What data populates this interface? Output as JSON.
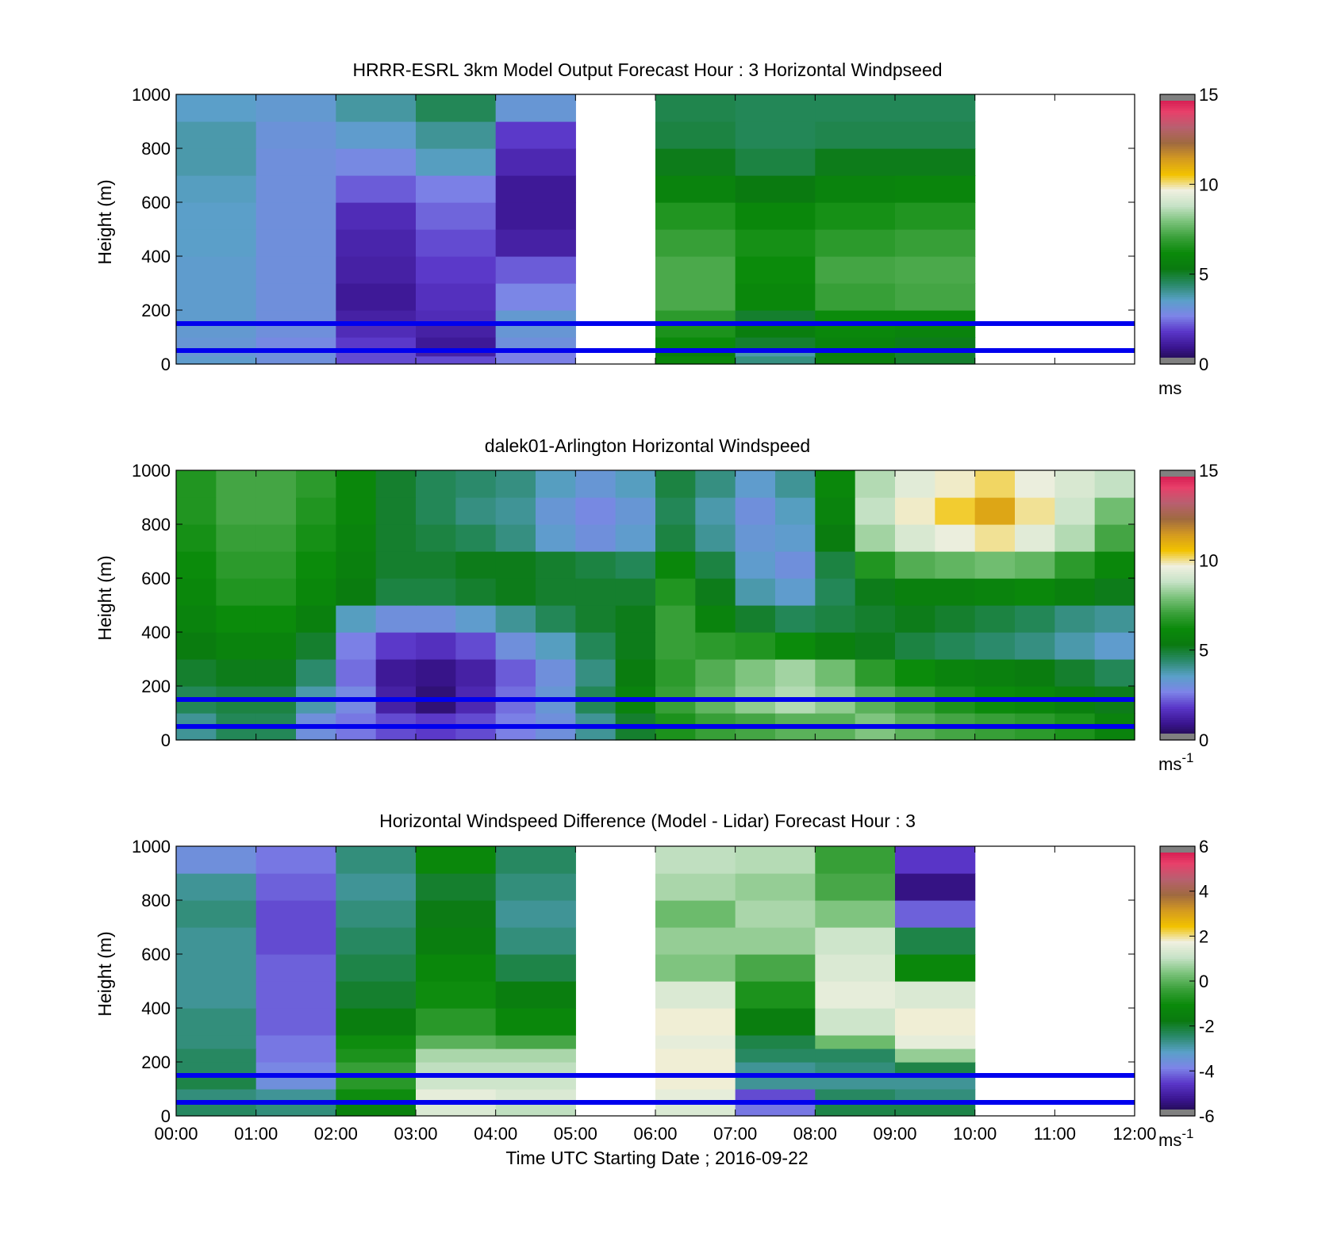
{
  "colormaps": {
    "speed": [
      "#1c0a40",
      "#3a1590",
      "#5a36c8",
      "#7d84e8",
      "#5aa0c8",
      "#2a8a6a",
      "#0a7a10",
      "#0a8a0a",
      "#3aa03a",
      "#7ac27a",
      "#c6e2c6",
      "#f0f0e0",
      "#f2c200",
      "#d49a20",
      "#a06a40",
      "#b86070",
      "#e8406a",
      "#d0104a"
    ],
    "diff": [
      "#1c0a40",
      "#3a1590",
      "#5a36c8",
      "#7d84e8",
      "#5aa0c8",
      "#2a8a6a",
      "#0a7a10",
      "#0a8a0a",
      "#3aa03a",
      "#7ac27a",
      "#c6e2c6",
      "#f0f0e0",
      "#f2c200",
      "#d49a20",
      "#a06a40",
      "#b86070",
      "#e8406a",
      "#d0104a"
    ]
  },
  "reference_lines": {
    "color": "#0000ee",
    "heights_m": [
      150,
      50
    ]
  },
  "xaxis": {
    "ticks": [
      "00:00",
      "01:00",
      "02:00",
      "03:00",
      "04:00",
      "05:00",
      "06:00",
      "07:00",
      "08:00",
      "09:00",
      "10:00",
      "11:00",
      "12:00"
    ],
    "label": "Time UTC  Starting Date ; 2016-09-22"
  },
  "chart_data": [
    {
      "type": "heatmap",
      "title": "HRRR-ESRL 3km Model Output   Forecast Hour : 3 Horizontal Windpseed",
      "ylabel": "Height (m)",
      "yticks": [
        "0",
        "200",
        "400",
        "600",
        "800",
        "1000"
      ],
      "ylim": [
        0,
        1000
      ],
      "xlim_hours": [
        0,
        12
      ],
      "colorbar": {
        "ticks": [
          "0",
          "5",
          "10",
          "15"
        ],
        "range": [
          0,
          15
        ],
        "unit": "ms",
        "unit_sup": "",
        "cmap": "speed"
      },
      "x_hours": [
        0,
        1,
        2,
        3,
        4,
        5,
        6,
        7,
        8,
        9
      ],
      "y_edges_m": [
        0,
        30,
        50,
        100,
        150,
        200,
        300,
        400,
        500,
        600,
        700,
        800,
        900,
        1000
      ],
      "values": [
        [
          3.4,
          3.0,
          2.0,
          2.0,
          2.6,
          null,
          6.0,
          4.2,
          5.6,
          5.0
        ],
        [
          3.2,
          3.0,
          2.0,
          1.2,
          2.6,
          null,
          5.5,
          3.8,
          5.5,
          5.0
        ],
        [
          3.2,
          2.8,
          1.8,
          1.0,
          3.0,
          null,
          6.2,
          5.0,
          5.8,
          5.2
        ],
        [
          3.3,
          3.0,
          1.5,
          1.2,
          3.2,
          null,
          6.5,
          5.5,
          6.0,
          5.8
        ],
        [
          3.4,
          3.0,
          1.2,
          1.5,
          3.3,
          null,
          6.8,
          5.0,
          6.2,
          6.2
        ],
        [
          3.4,
          3.0,
          1.0,
          1.6,
          2.7,
          null,
          7.3,
          6.0,
          7.0,
          7.2
        ],
        [
          3.4,
          3.0,
          1.2,
          1.8,
          2.2,
          null,
          7.3,
          6.2,
          7.2,
          7.3
        ],
        [
          3.5,
          3.0,
          1.3,
          2.0,
          1.2,
          null,
          7.0,
          6.4,
          6.8,
          7.0
        ],
        [
          3.5,
          3.0,
          1.5,
          2.3,
          1.0,
          null,
          6.6,
          6.0,
          6.4,
          6.6
        ],
        [
          3.6,
          3.0,
          2.2,
          2.6,
          1.0,
          null,
          5.8,
          5.3,
          5.8,
          5.9
        ],
        [
          3.8,
          3.0,
          2.8,
          3.6,
          1.4,
          null,
          5.2,
          4.8,
          5.2,
          5.2
        ],
        [
          3.8,
          3.1,
          3.4,
          4.0,
          1.8,
          null,
          4.8,
          4.6,
          4.7,
          4.7
        ],
        [
          3.5,
          3.3,
          3.9,
          4.6,
          3.2,
          null,
          4.7,
          4.6,
          4.6,
          4.6
        ]
      ]
    },
    {
      "type": "heatmap",
      "title": "dalek01-Arlington  Horizontal Windspeed",
      "ylabel": "Height (m)",
      "yticks": [
        "0",
        "200",
        "400",
        "600",
        "800",
        "1000"
      ],
      "ylim": [
        0,
        1000
      ],
      "xlim_hours": [
        0,
        12
      ],
      "colorbar": {
        "ticks": [
          "0",
          "5",
          "10",
          "15"
        ],
        "range": [
          0,
          15
        ],
        "unit": "ms",
        "unit_sup": "-1",
        "cmap": "speed"
      },
      "x_hours": [
        0.0,
        0.5,
        1.0,
        1.5,
        2.0,
        2.5,
        3.0,
        3.5,
        4.0,
        4.5,
        5.0,
        5.5,
        6.0,
        6.5,
        7.0,
        7.5,
        8.0,
        8.5,
        9.0,
        9.5,
        10.0,
        10.5,
        11.0,
        11.5
      ],
      "y_edges_m": [
        0,
        100,
        200,
        300,
        400,
        500,
        600,
        700,
        800,
        900,
        1000
      ],
      "values": [
        [
          4.0,
          4.6,
          4.6,
          3.0,
          2.5,
          2.0,
          1.8,
          2.0,
          2.6,
          3.0,
          4.0,
          5.0,
          6.5,
          7.0,
          7.2,
          7.5,
          7.5,
          8.0,
          7.5,
          7.2,
          7.0,
          6.8,
          6.5,
          5.8
        ],
        [
          4.6,
          4.8,
          4.8,
          3.8,
          2.8,
          1.2,
          0.6,
          1.4,
          2.4,
          3.2,
          4.6,
          5.8,
          7.0,
          7.6,
          8.2,
          8.6,
          8.2,
          7.5,
          7.0,
          6.5,
          6.2,
          6.0,
          5.6,
          5.2
        ],
        [
          5.0,
          5.2,
          5.2,
          4.4,
          2.4,
          1.0,
          0.8,
          1.2,
          2.2,
          3.0,
          4.2,
          5.4,
          6.8,
          7.4,
          8.0,
          8.4,
          7.8,
          6.8,
          6.2,
          5.8,
          5.6,
          5.4,
          5.0,
          4.6
        ],
        [
          5.4,
          5.8,
          5.8,
          5.0,
          2.6,
          1.8,
          1.6,
          2.0,
          3.0,
          3.6,
          4.6,
          5.2,
          7.0,
          6.8,
          6.6,
          6.2,
          5.6,
          5.2,
          4.8,
          4.6,
          4.4,
          4.2,
          3.8,
          3.4
        ],
        [
          5.8,
          6.2,
          6.2,
          5.6,
          3.6,
          3.0,
          3.0,
          3.4,
          4.0,
          4.6,
          5.0,
          5.2,
          7.0,
          5.8,
          5.0,
          4.6,
          4.8,
          5.0,
          5.2,
          5.0,
          4.8,
          4.6,
          4.2,
          4.0
        ],
        [
          6.0,
          6.6,
          6.6,
          6.0,
          5.4,
          4.8,
          4.8,
          5.0,
          5.2,
          5.0,
          5.0,
          5.0,
          6.6,
          5.2,
          3.8,
          3.4,
          4.6,
          5.2,
          5.6,
          5.6,
          5.8,
          6.0,
          5.6,
          5.2
        ],
        [
          6.2,
          6.8,
          6.8,
          6.2,
          5.6,
          5.0,
          5.0,
          5.2,
          5.2,
          5.0,
          4.8,
          4.6,
          6.0,
          4.8,
          3.4,
          3.0,
          4.8,
          6.6,
          7.4,
          7.6,
          7.8,
          7.6,
          6.8,
          6.0
        ],
        [
          6.4,
          7.0,
          7.0,
          6.4,
          5.8,
          5.0,
          4.8,
          4.6,
          4.2,
          3.4,
          3.0,
          3.4,
          4.8,
          4.0,
          3.2,
          3.4,
          5.4,
          8.4,
          9.2,
          9.6,
          10.0,
          9.4,
          8.6,
          7.2
        ],
        [
          6.6,
          7.2,
          7.2,
          6.6,
          6.0,
          5.0,
          4.6,
          4.2,
          4.0,
          3.2,
          2.8,
          3.2,
          4.6,
          3.8,
          3.0,
          3.6,
          5.8,
          8.8,
          9.8,
          10.4,
          11.2,
          10.0,
          9.0,
          7.8
        ],
        [
          6.6,
          7.2,
          7.2,
          6.8,
          6.0,
          5.0,
          4.6,
          4.4,
          4.2,
          3.6,
          3.2,
          3.6,
          4.8,
          4.2,
          3.4,
          4.0,
          6.0,
          8.6,
          9.4,
          9.8,
          10.2,
          9.6,
          9.2,
          8.8
        ]
      ]
    },
    {
      "type": "heatmap",
      "title": "Horizontal Windspeed Difference (Model - Lidar) Forecast Hour : 3",
      "ylabel": "Height (m)",
      "yticks": [
        "0",
        "200",
        "400",
        "600",
        "800",
        "1000"
      ],
      "ylim": [
        0,
        1000
      ],
      "xlim_hours": [
        0,
        12
      ],
      "colorbar": {
        "ticks": [
          "-6",
          "-4",
          "-2",
          "0",
          "2",
          "4",
          "6"
        ],
        "range": [
          -6,
          6
        ],
        "unit": "ms",
        "unit_sup": "-1",
        "cmap": "diff"
      },
      "x_hours": [
        0,
        1,
        2,
        3,
        4,
        5,
        6,
        7,
        8,
        9
      ],
      "y_edges_m": [
        0,
        50,
        100,
        150,
        200,
        250,
        300,
        400,
        500,
        600,
        700,
        800,
        900,
        1000
      ],
      "values": [
        [
          -2.4,
          -2.6,
          -1.4,
          1.4,
          1.0,
          null,
          1.4,
          -4.0,
          -2.2,
          -2.2
        ],
        [
          -2.6,
          -2.8,
          -1.0,
          1.6,
          1.4,
          null,
          1.6,
          -4.4,
          -2.4,
          -2.6
        ],
        [
          -2.2,
          -3.6,
          -0.6,
          1.2,
          1.2,
          null,
          1.8,
          -2.8,
          -2.8,
          -2.8
        ],
        [
          -2.4,
          -3.8,
          -0.4,
          1.0,
          1.0,
          null,
          1.8,
          -2.8,
          -2.6,
          -2.2
        ],
        [
          -2.4,
          -4.0,
          -0.8,
          0.8,
          0.8,
          null,
          1.8,
          -2.4,
          -2.4,
          0.6
        ],
        [
          -2.6,
          -4.0,
          -1.0,
          0.0,
          -0.2,
          null,
          1.6,
          -2.2,
          0.2,
          1.6
        ],
        [
          -2.6,
          -4.2,
          -1.6,
          -0.6,
          -1.2,
          null,
          1.8,
          -1.6,
          1.2,
          1.8
        ],
        [
          -2.8,
          -4.2,
          -2.0,
          -1.0,
          -1.6,
          null,
          1.4,
          -0.8,
          1.6,
          1.4
        ],
        [
          -2.8,
          -4.2,
          -2.2,
          -1.2,
          -2.2,
          null,
          0.4,
          -0.2,
          1.4,
          -1.2
        ],
        [
          -2.8,
          -4.4,
          -2.4,
          -1.6,
          -2.6,
          null,
          0.6,
          0.6,
          1.2,
          -2.2
        ],
        [
          -2.6,
          -4.4,
          -2.6,
          -1.8,
          -2.8,
          null,
          0.2,
          0.8,
          0.4,
          -4.2
        ],
        [
          -2.8,
          -4.2,
          -2.8,
          -2.0,
          -2.6,
          null,
          0.8,
          0.6,
          -0.2,
          -5.4
        ],
        [
          -3.6,
          -4.0,
          -2.6,
          -1.2,
          -2.4,
          null,
          1.0,
          0.9,
          -0.4,
          -4.6
        ]
      ]
    }
  ]
}
